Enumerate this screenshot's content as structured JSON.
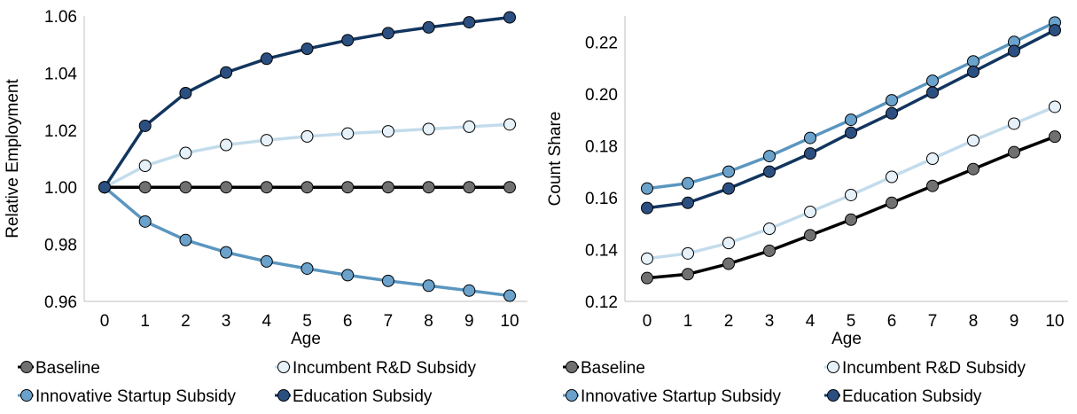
{
  "colors": {
    "Baseline": "#000000",
    "Incumbent R&D Subsidy": "#c3dcec",
    "Innovative Startup Subsidy": "#5a96c0",
    "Education Subsidy": "#12355f"
  },
  "marker_fill": {
    "Baseline": "#707070",
    "Incumbent R&D Subsidy": "#e6f1f9",
    "Innovative Startup Subsidy": "#6aa2cc",
    "Education Subsidy": "#2b4f80"
  },
  "chart_data": [
    {
      "type": "line",
      "xlabel": "Age",
      "ylabel": "Relative Employment",
      "x": [
        0,
        1,
        2,
        3,
        4,
        5,
        6,
        7,
        8,
        9,
        10
      ],
      "ylim": [
        0.96,
        1.06
      ],
      "yticks": [
        "0.96",
        "0.98",
        "1.00",
        "1.02",
        "1.04",
        "1.06"
      ],
      "yticks_values": [
        0.96,
        0.98,
        1.0,
        1.02,
        1.04,
        1.06
      ],
      "legend": [
        "Baseline",
        "Incumbent R&D Subsidy",
        "Innovative Startup Subsidy",
        "Education Subsidy"
      ],
      "legend_position": "bottom",
      "series": [
        {
          "name": "Innovative Startup Subsidy",
          "values": [
            1.0,
            0.988,
            0.9815,
            0.9772,
            0.974,
            0.9715,
            0.9692,
            0.9672,
            0.9655,
            0.9638,
            0.962
          ]
        },
        {
          "name": "Baseline",
          "values": [
            1.0,
            1.0,
            1.0,
            1.0,
            1.0,
            1.0,
            1.0,
            1.0,
            1.0,
            1.0,
            1.0
          ]
        },
        {
          "name": "Incumbent R&D Subsidy",
          "values": [
            1.0,
            1.0075,
            1.012,
            1.0148,
            1.0165,
            1.0178,
            1.0188,
            1.0196,
            1.0204,
            1.0212,
            1.022
          ]
        },
        {
          "name": "Education Subsidy",
          "values": [
            1.0,
            1.0215,
            1.033,
            1.0402,
            1.045,
            1.0485,
            1.0515,
            1.054,
            1.056,
            1.0578,
            1.0595
          ]
        }
      ]
    },
    {
      "type": "line",
      "xlabel": "Age",
      "ylabel": "Count Share",
      "x": [
        0,
        1,
        2,
        3,
        4,
        5,
        6,
        7,
        8,
        9,
        10
      ],
      "ylim": [
        0.12,
        0.23
      ],
      "yticks": [
        "0.12",
        "0.14",
        "0.16",
        "0.18",
        "0.20",
        "0.22"
      ],
      "yticks_values": [
        0.12,
        0.14,
        0.16,
        0.18,
        0.2,
        0.22
      ],
      "legend": [
        "Baseline",
        "Incumbent R&D Subsidy",
        "Innovative Startup Subsidy",
        "Education Subsidy"
      ],
      "legend_position": "bottom",
      "series": [
        {
          "name": "Baseline",
          "values": [
            0.129,
            0.1305,
            0.1345,
            0.1395,
            0.1455,
            0.1515,
            0.158,
            0.1645,
            0.171,
            0.1775,
            0.1835
          ]
        },
        {
          "name": "Incumbent R&D Subsidy",
          "values": [
            0.1365,
            0.1385,
            0.1425,
            0.148,
            0.1545,
            0.161,
            0.168,
            0.175,
            0.182,
            0.1885,
            0.195
          ]
        },
        {
          "name": "Innovative Startup Subsidy",
          "values": [
            0.1635,
            0.1655,
            0.17,
            0.176,
            0.183,
            0.19,
            0.1975,
            0.205,
            0.2125,
            0.22,
            0.2275
          ]
        },
        {
          "name": "Education Subsidy",
          "values": [
            0.156,
            0.158,
            0.1635,
            0.17,
            0.177,
            0.185,
            0.1925,
            0.2005,
            0.2085,
            0.2165,
            0.2245
          ]
        }
      ]
    }
  ]
}
